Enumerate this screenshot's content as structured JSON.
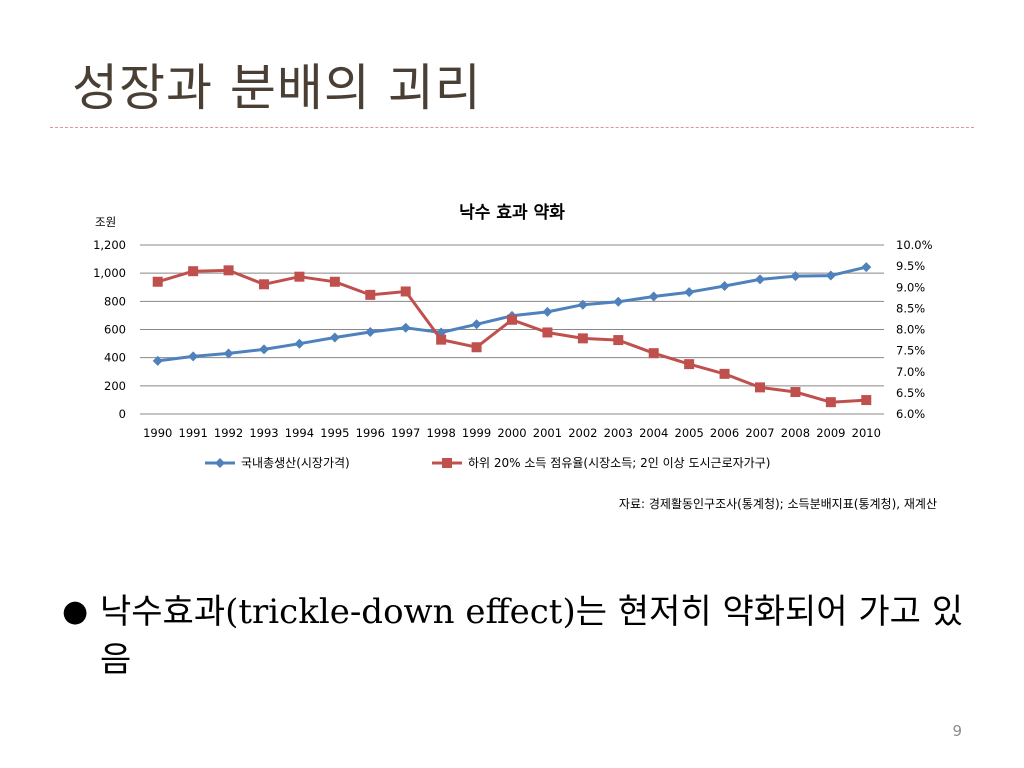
{
  "slide": {
    "title": "성장과 분배의 괴리",
    "bullet_marker": "●",
    "bullet_text": "낙수효과(trickle-down effect)는 현저히 약화되어 가고 있음",
    "page_number": "9",
    "colors": {
      "title": "#4a3f35",
      "title_rule": "#d99694",
      "series_gdp": "#4f81bd",
      "series_share": "#c0504d",
      "grid": "#888888"
    }
  },
  "chart_data": {
    "type": "line",
    "title": "낙수 효과 약화",
    "left_axis_unit": "조원",
    "categories": [
      "1990",
      "1991",
      "1992",
      "1993",
      "1994",
      "1995",
      "1996",
      "1997",
      "1998",
      "1999",
      "2000",
      "2001",
      "2002",
      "2003",
      "2004",
      "2005",
      "2006",
      "2007",
      "2008",
      "2009",
      "2010"
    ],
    "y_left": {
      "range": [
        0,
        1200
      ],
      "ticks": [
        0,
        200,
        400,
        600,
        800,
        1000,
        1200
      ],
      "tick_labels": [
        "0",
        "200",
        "400",
        "600",
        "800",
        "1,000",
        "1,200"
      ]
    },
    "y_right": {
      "range": [
        6.0,
        10.0
      ],
      "ticks": [
        6.0,
        6.5,
        7.0,
        7.5,
        8.0,
        8.5,
        9.0,
        9.5,
        10.0
      ],
      "tick_labels": [
        "6.0%",
        "6.5%",
        "7.0%",
        "7.5%",
        "8.0%",
        "8.5%",
        "9.0%",
        "9.5%",
        "10.0%"
      ]
    },
    "series": [
      {
        "name": "국내총생산(시장가격)",
        "axis": "left",
        "marker": "diamond",
        "color": "#4f81bd",
        "values": [
          377,
          409,
          430,
          459,
          499,
          543,
          582,
          612,
          579,
          637,
          697,
          725,
          776,
          797,
          834,
          865,
          909,
          956,
          979,
          983,
          1043
        ]
      },
      {
        "name": "하위 20% 소득 점유율(시장소득; 2인 이상 도시근로자가구)",
        "axis": "right",
        "marker": "square",
        "color": "#c0504d",
        "values": [
          9.13,
          9.38,
          9.4,
          9.07,
          9.25,
          9.13,
          8.82,
          8.9,
          7.76,
          7.58,
          8.23,
          7.93,
          7.79,
          7.75,
          7.44,
          7.18,
          6.95,
          6.63,
          6.52,
          6.28,
          6.33
        ]
      }
    ],
    "grid": true,
    "legend_position": "bottom",
    "source_note": "자료: 경제활동인구조사(통계청); 소득분배지표(통계청), 재계산"
  }
}
